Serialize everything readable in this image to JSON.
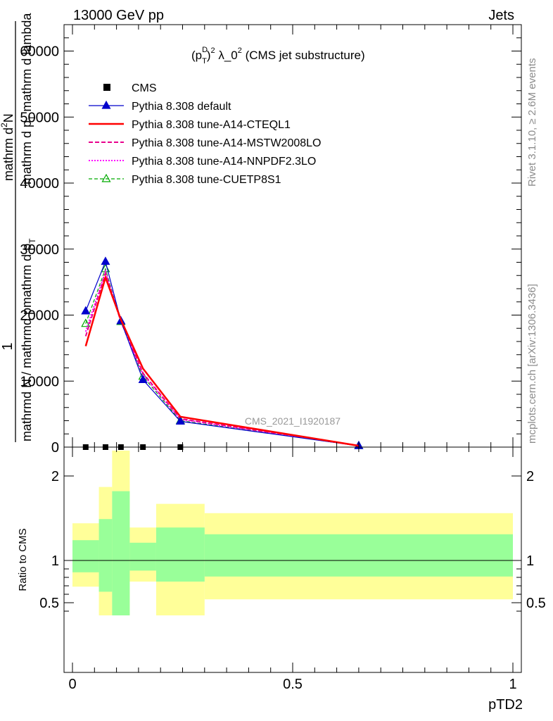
{
  "header": {
    "left": "13000 GeV pp",
    "right": "Jets"
  },
  "side_labels": {
    "rivet": "Rivet 3.1.10, ≥ 2.6M events",
    "mcplots": "mcplots.cern.ch [arXiv:1306.3436]"
  },
  "chart_data": [
    {
      "type": "line",
      "title_parts": {
        "p": "(p",
        "sup_d": "D",
        "sub_t": "T",
        "close": ")",
        "sup_2": "2",
        "lambda": " λ_0",
        "sup_2b": "2",
        "rest": " (CMS jet substructure)"
      },
      "ylabel": {
        "one": "1",
        "den": "mathrmd N / mathrmd pmathrm d p",
        "sub_t": "T",
        "num_a": "mathrm d",
        "sup_2": "2",
        "num_b": "N",
        "num_c": "mathrm d p",
        "num_c_sub": "T",
        "num_d": " mathrm d lambda"
      },
      "watermark": "CMS_2021_I1920187",
      "ylim": [
        0,
        64000
      ],
      "xlim": [
        0,
        1
      ],
      "yticks": [
        {
          "v": 0,
          "label": "0"
        },
        {
          "v": 10000,
          "label": "10000"
        },
        {
          "v": 20000,
          "label": "20000"
        },
        {
          "v": 30000,
          "label": "30000"
        },
        {
          "v": 40000,
          "label": "40000"
        },
        {
          "v": 50000,
          "label": "50000"
        },
        {
          "v": 60000,
          "label": "60000"
        }
      ],
      "series": [
        {
          "name": "CMS",
          "color": "#000000",
          "style": "marker-square",
          "x": [
            0.03,
            0.075,
            0.11,
            0.16,
            0.245
          ],
          "y": [
            0,
            0,
            0,
            0,
            0
          ]
        },
        {
          "name": "Pythia 8.308 default",
          "color": "#0000cc",
          "style": "solid-thin",
          "marker": "triangle",
          "x": [
            0.03,
            0.075,
            0.11,
            0.16,
            0.245,
            0.65
          ],
          "y": [
            20600,
            28100,
            19100,
            10200,
            3900,
            200
          ]
        },
        {
          "name": "Pythia 8.308 tune-A14-CTEQL1",
          "color": "#ff0000",
          "style": "solid-thick",
          "x": [
            0.03,
            0.075,
            0.11,
            0.16,
            0.245,
            0.65
          ],
          "y": [
            15300,
            25700,
            19300,
            11900,
            4600,
            200
          ]
        },
        {
          "name": "Pythia 8.308 tune-A14-MSTW2008LO",
          "color": "#e8008c",
          "style": "dashed",
          "x": [
            0.03,
            0.075,
            0.11,
            0.16,
            0.245,
            0.65
          ],
          "y": [
            16800,
            26300,
            19000,
            11200,
            4300,
            200
          ]
        },
        {
          "name": "Pythia 8.308 tune-A14-NNPDF2.3LO",
          "color": "#ff00ff",
          "style": "dotted",
          "x": [
            0.03,
            0.075,
            0.11,
            0.16,
            0.245,
            0.65
          ],
          "y": [
            17500,
            26600,
            19100,
            11000,
            4200,
            200
          ]
        },
        {
          "name": "Pythia 8.308 tune-CUETP8S1",
          "color": "#00aa00",
          "style": "dashed-thin",
          "marker": "triangle-open",
          "x": [
            0.03,
            0.075,
            0.11,
            0.16,
            0.245,
            0.65
          ],
          "y": [
            18700,
            27000,
            19000,
            10700,
            4000,
            200
          ]
        }
      ],
      "legend": "top-left"
    },
    {
      "type": "area",
      "ylabel": "Ratio to CMS",
      "xlabel": "pTD2",
      "ylim": [
        0.35,
        2.3
      ],
      "xlim": [
        0,
        1
      ],
      "yticks": [
        {
          "v": 0.5,
          "label": "0.5"
        },
        {
          "v": 1,
          "label": "1"
        },
        {
          "v": 2,
          "label": "2"
        }
      ],
      "xticks": [
        {
          "v": 0,
          "label": "0"
        },
        {
          "v": 0.5,
          "label": "0.5"
        },
        {
          "v": 1,
          "label": "1"
        }
      ],
      "colors": {
        "inner": "#99ff99",
        "outer": "#ffff99",
        "line": "#000000"
      },
      "bands": [
        {
          "x0": 0.0,
          "x1": 0.06,
          "inner": [
            0.86,
            1.24
          ],
          "outer": [
            0.69,
            1.44
          ]
        },
        {
          "x0": 0.06,
          "x1": 0.09,
          "inner": [
            0.63,
            1.49
          ],
          "outer": [
            0.35,
            1.87
          ]
        },
        {
          "x0": 0.09,
          "x1": 0.13,
          "inner": [
            0.35,
            1.82
          ],
          "outer": [
            0.35,
            2.3
          ]
        },
        {
          "x0": 0.13,
          "x1": 0.19,
          "inner": [
            0.88,
            1.21
          ],
          "outer": [
            0.75,
            1.39
          ]
        },
        {
          "x0": 0.19,
          "x1": 0.3,
          "inner": [
            0.75,
            1.39
          ],
          "outer": [
            0.35,
            1.67
          ]
        },
        {
          "x0": 0.3,
          "x1": 1.0,
          "inner": [
            0.81,
            1.31
          ],
          "outer": [
            0.54,
            1.56
          ]
        }
      ]
    }
  ]
}
